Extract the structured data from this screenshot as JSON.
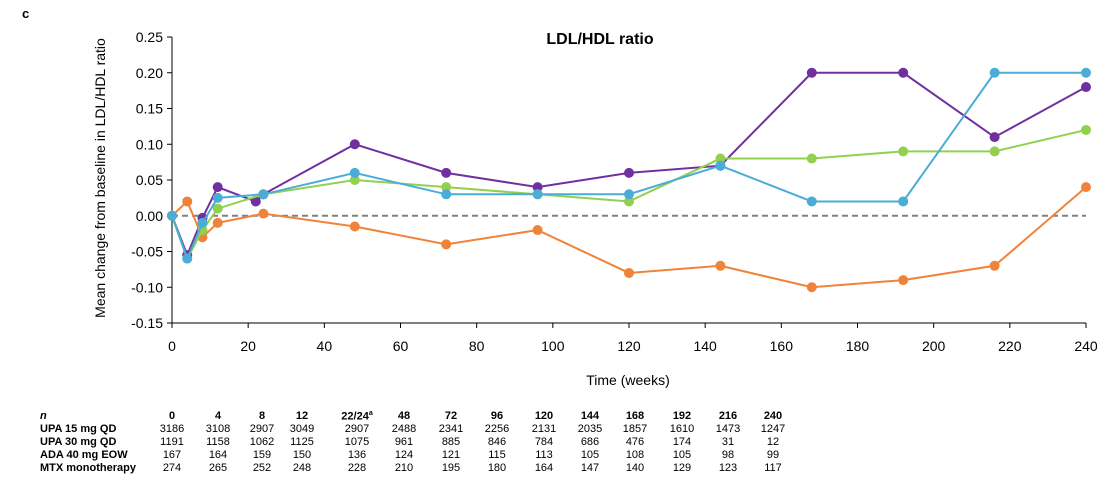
{
  "panel_letter": "c",
  "chart_data": {
    "type": "line",
    "title": "LDL/HDL ratio",
    "xlabel": "Time (weeks)",
    "ylabel": "Mean change from baseline in LDL/HDL ratio",
    "xlim": [
      0,
      240
    ],
    "ylim": [
      -0.15,
      0.25
    ],
    "x_ticks": [
      "0",
      "20",
      "40",
      "60",
      "80",
      "100",
      "120",
      "140",
      "160",
      "180",
      "200",
      "220",
      "240"
    ],
    "y_ticks": [
      "0.25",
      "0.20",
      "0.15",
      "0.10",
      "0.05",
      "0.00",
      "-0.05",
      "-0.10",
      "-0.15"
    ],
    "reference_line": {
      "y": 0,
      "style": "dashed",
      "color": "#808080"
    },
    "series": [
      {
        "color": "#7030A0",
        "points": [
          [
            0,
            0.0
          ],
          [
            4,
            -0.055
          ],
          [
            8,
            -0.003
          ],
          [
            12,
            0.04
          ],
          [
            22,
            0.02
          ],
          [
            24,
            0.03
          ],
          [
            48,
            0.1
          ],
          [
            72,
            0.06
          ],
          [
            96,
            0.04
          ],
          [
            120,
            0.06
          ],
          [
            144,
            0.07
          ],
          [
            168,
            0.2
          ],
          [
            192,
            0.2
          ],
          [
            216,
            0.11
          ],
          [
            240,
            0.18
          ]
        ]
      },
      {
        "color": "#F0833A",
        "points": [
          [
            0,
            0.0
          ],
          [
            4,
            0.02
          ],
          [
            8,
            -0.03
          ],
          [
            12,
            -0.01
          ],
          [
            24,
            0.003
          ],
          [
            48,
            -0.015
          ],
          [
            72,
            -0.04
          ],
          [
            96,
            -0.02
          ],
          [
            120,
            -0.08
          ],
          [
            144,
            -0.07
          ],
          [
            168,
            -0.1
          ],
          [
            192,
            -0.09
          ],
          [
            216,
            -0.07
          ],
          [
            240,
            0.04
          ]
        ]
      },
      {
        "color": "#92D050",
        "points": [
          [
            0,
            0.0
          ],
          [
            4,
            -0.06
          ],
          [
            8,
            -0.02
          ],
          [
            12,
            0.01
          ],
          [
            24,
            0.03
          ],
          [
            48,
            0.05
          ],
          [
            72,
            0.04
          ],
          [
            96,
            0.03
          ],
          [
            120,
            0.02
          ],
          [
            144,
            0.08
          ],
          [
            168,
            0.08
          ],
          [
            192,
            0.09
          ],
          [
            216,
            0.09
          ],
          [
            240,
            0.12
          ]
        ]
      },
      {
        "color": "#4BACD6",
        "points": [
          [
            0,
            0.0
          ],
          [
            4,
            -0.06
          ],
          [
            8,
            -0.01
          ],
          [
            12,
            0.025
          ],
          [
            24,
            0.03
          ],
          [
            48,
            0.06
          ],
          [
            72,
            0.03
          ],
          [
            96,
            0.03
          ],
          [
            120,
            0.03
          ],
          [
            144,
            0.07
          ],
          [
            168,
            0.02
          ],
          [
            192,
            0.02
          ],
          [
            216,
            0.2
          ],
          [
            240,
            0.2
          ]
        ]
      }
    ]
  },
  "n_table": {
    "header_label": "n",
    "timepoints": [
      "0",
      "4",
      "8",
      "12",
      "22/24",
      "48",
      "72",
      "96",
      "120",
      "144",
      "168",
      "192",
      "216",
      "240"
    ],
    "timepoint_note": "a",
    "rows": [
      {
        "label": "UPA 15 mg QD",
        "values": [
          "3186",
          "3108",
          "2907",
          "3049",
          "2907",
          "2488",
          "2341",
          "2256",
          "2131",
          "2035",
          "1857",
          "1610",
          "1473",
          "1247"
        ]
      },
      {
        "label": "UPA 30 mg QD",
        "values": [
          "1191",
          "1158",
          "1062",
          "1125",
          "1075",
          "961",
          "885",
          "846",
          "784",
          "686",
          "476",
          "174",
          "31",
          "12"
        ]
      },
      {
        "label": "ADA 40 mg EOW",
        "values": [
          "167",
          "164",
          "159",
          "150",
          "136",
          "124",
          "121",
          "115",
          "113",
          "105",
          "108",
          "105",
          "98",
          "99"
        ]
      },
      {
        "label": "MTX monotherapy",
        "values": [
          "274",
          "265",
          "252",
          "248",
          "228",
          "210",
          "195",
          "180",
          "164",
          "147",
          "140",
          "129",
          "123",
          "117"
        ]
      }
    ]
  }
}
